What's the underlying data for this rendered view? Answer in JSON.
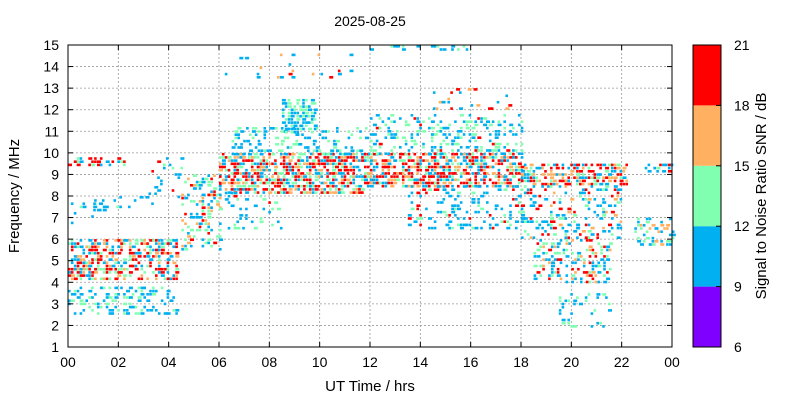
{
  "chart_data": {
    "type": "scatter",
    "title": "2025-08-25",
    "xlabel": "UT Time / hrs",
    "ylabel": "Frequency / MHz",
    "xlim": [
      0,
      24
    ],
    "ylim": [
      1,
      15
    ],
    "x_ticks": [
      "00",
      "02",
      "04",
      "06",
      "08",
      "10",
      "12",
      "14",
      "16",
      "18",
      "20",
      "22",
      "00"
    ],
    "y_ticks": [
      "1",
      "2",
      "3",
      "4",
      "5",
      "6",
      "7",
      "8",
      "9",
      "10",
      "11",
      "12",
      "13",
      "14",
      "15"
    ],
    "grid": true,
    "colorbar": {
      "label": "Signal to Noise Ratio SNR / dB",
      "range": [
        6,
        21
      ],
      "ticks": [
        "6",
        "9",
        "12",
        "15",
        "18",
        "21"
      ],
      "bins": [
        {
          "from": 6,
          "to": 9,
          "color": "#8000ff"
        },
        {
          "from": 9,
          "to": 12,
          "color": "#00b0f0"
        },
        {
          "from": 12,
          "to": 15,
          "color": "#80ffb0"
        },
        {
          "from": 15,
          "to": 18,
          "color": "#ffb060"
        },
        {
          "from": 18,
          "to": 21,
          "color": "#ff0000"
        }
      ]
    },
    "regions": [
      {
        "t0": 0.0,
        "t1": 4.3,
        "f0": 4.2,
        "f1": 6.0,
        "density": 0.55,
        "mix": {
          "r": 0.35,
          "o": 0.2,
          "g": 0.15,
          "b": 0.3
        }
      },
      {
        "t0": 0.0,
        "t1": 4.3,
        "f0": 2.5,
        "f1": 3.8,
        "density": 0.3,
        "mix": {
          "b": 0.7,
          "g": 0.3
        }
      },
      {
        "t0": 0.0,
        "t1": 2.2,
        "f0": 9.5,
        "f1": 9.8,
        "density": 0.5,
        "mix": {
          "r": 0.5,
          "b": 0.3,
          "g": 0.2
        }
      },
      {
        "t0": 0.0,
        "t1": 1.5,
        "f0": 6.8,
        "f1": 8.0,
        "density": 0.1,
        "mix": {
          "b": 0.8,
          "g": 0.2
        }
      },
      {
        "t0": 1.0,
        "t1": 3.5,
        "f0": 7.3,
        "f1": 8.0,
        "density": 0.15,
        "mix": {
          "b": 0.8,
          "g": 0.2
        }
      },
      {
        "t0": 3.2,
        "t1": 4.5,
        "f0": 8.0,
        "f1": 9.8,
        "density": 0.1,
        "mix": {
          "b": 0.7,
          "g": 0.2,
          "r": 0.1
        }
      },
      {
        "t0": 4.5,
        "t1": 6.0,
        "f0": 5.5,
        "f1": 9.0,
        "density": 0.35,
        "mix": {
          "b": 0.4,
          "g": 0.35,
          "o": 0.15,
          "r": 0.1
        }
      },
      {
        "t0": 6.0,
        "t1": 12.0,
        "f0": 8.2,
        "f1": 10.0,
        "density": 0.65,
        "mix": {
          "r": 0.35,
          "o": 0.2,
          "g": 0.2,
          "b": 0.25
        }
      },
      {
        "t0": 6.0,
        "t1": 8.5,
        "f0": 6.5,
        "f1": 8.2,
        "density": 0.15,
        "mix": {
          "b": 0.6,
          "g": 0.3,
          "r": 0.1
        }
      },
      {
        "t0": 6.5,
        "t1": 12.0,
        "f0": 10.0,
        "f1": 11.2,
        "density": 0.25,
        "mix": {
          "b": 0.6,
          "g": 0.4
        }
      },
      {
        "t0": 8.5,
        "t1": 9.8,
        "f0": 11.0,
        "f1": 12.5,
        "density": 0.5,
        "mix": {
          "b": 0.6,
          "g": 0.4
        }
      },
      {
        "t0": 6.0,
        "t1": 11.5,
        "f0": 13.5,
        "f1": 14.6,
        "density": 0.05,
        "mix": {
          "b": 0.6,
          "o": 0.3,
          "r": 0.1
        }
      },
      {
        "t0": 12.0,
        "t1": 18.0,
        "f0": 8.5,
        "f1": 10.0,
        "density": 0.6,
        "mix": {
          "r": 0.35,
          "o": 0.2,
          "g": 0.15,
          "b": 0.3
        }
      },
      {
        "t0": 12.0,
        "t1": 18.0,
        "f0": 10.0,
        "f1": 11.8,
        "density": 0.3,
        "mix": {
          "b": 0.55,
          "g": 0.4,
          "r": 0.05
        }
      },
      {
        "t0": 13.5,
        "t1": 18.0,
        "f0": 6.5,
        "f1": 8.5,
        "density": 0.2,
        "mix": {
          "b": 0.6,
          "g": 0.2,
          "r": 0.2
        }
      },
      {
        "t0": 14.5,
        "t1": 17.5,
        "f0": 12.0,
        "f1": 13.0,
        "density": 0.12,
        "mix": {
          "r": 0.4,
          "o": 0.3,
          "b": 0.3
        }
      },
      {
        "t0": 12.0,
        "t1": 16.0,
        "f0": 14.8,
        "f1": 15.0,
        "density": 0.3,
        "mix": {
          "b": 0.8,
          "g": 0.2
        }
      },
      {
        "t0": 18.0,
        "t1": 22.2,
        "f0": 8.5,
        "f1": 9.5,
        "density": 0.5,
        "mix": {
          "r": 0.35,
          "o": 0.25,
          "g": 0.15,
          "b": 0.25
        }
      },
      {
        "t0": 18.0,
        "t1": 22.0,
        "f0": 6.0,
        "f1": 8.5,
        "density": 0.25,
        "mix": {
          "b": 0.5,
          "g": 0.2,
          "r": 0.2,
          "o": 0.1
        }
      },
      {
        "t0": 18.5,
        "t1": 21.5,
        "f0": 4.0,
        "f1": 6.0,
        "density": 0.3,
        "mix": {
          "b": 0.4,
          "g": 0.3,
          "r": 0.15,
          "o": 0.15
        }
      },
      {
        "t0": 19.5,
        "t1": 21.5,
        "f0": 2.0,
        "f1": 3.5,
        "density": 0.2,
        "mix": {
          "b": 0.6,
          "g": 0.4
        }
      },
      {
        "t0": 22.5,
        "t1": 24.0,
        "f0": 5.8,
        "f1": 7.0,
        "density": 0.35,
        "mix": {
          "b": 0.5,
          "g": 0.3,
          "o": 0.2
        }
      },
      {
        "t0": 22.8,
        "t1": 24.0,
        "f0": 9.2,
        "f1": 9.5,
        "density": 0.5,
        "mix": {
          "b": 0.6,
          "g": 0.2,
          "r": 0.2
        }
      }
    ]
  }
}
